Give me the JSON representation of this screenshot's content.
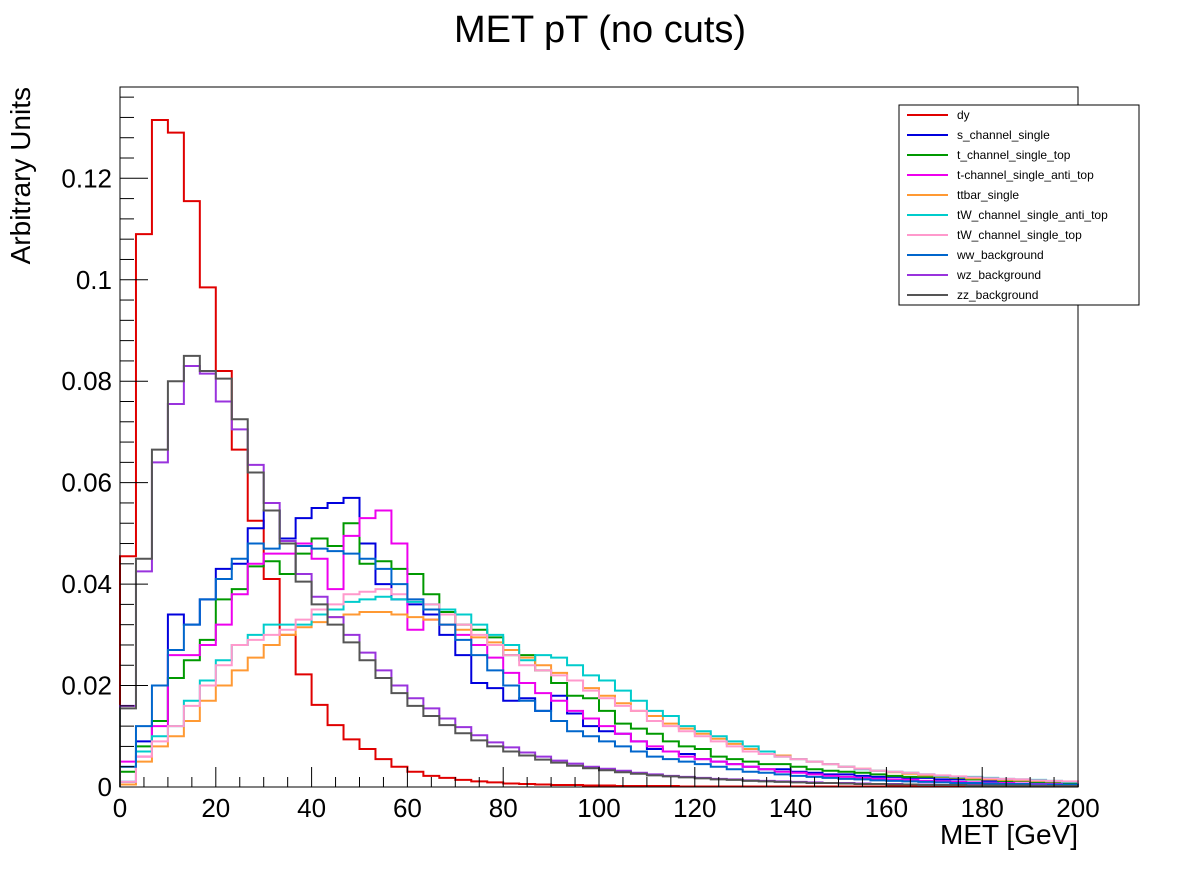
{
  "chart_data": {
    "type": "line",
    "title": "MET pT (no cuts)",
    "xlabel": "MET [GeV]",
    "ylabel": "Arbitrary Units",
    "xlim": [
      0,
      200
    ],
    "ylim": [
      0,
      0.138
    ],
    "bin_width": 3.333,
    "x_ticks": [
      0,
      20,
      40,
      60,
      80,
      100,
      120,
      140,
      160,
      180,
      200
    ],
    "x_tick_labels": [
      "0",
      "20",
      "40",
      "60",
      "80",
      "100",
      "120",
      "140",
      "160",
      "180",
      "200"
    ],
    "y_ticks": [
      0,
      0.02,
      0.04,
      0.06,
      0.08,
      0.1,
      0.12
    ],
    "y_tick_labels": [
      "0",
      "0.02",
      "0.04",
      "0.06",
      "0.08",
      "0.1",
      "0.12"
    ],
    "grid": false,
    "legend_position": "top-right",
    "series": [
      {
        "name": "dy",
        "color": "#e00000",
        "values": [
          0.0455,
          0.109,
          0.1315,
          0.129,
          0.1155,
          0.0985,
          0.082,
          0.0665,
          0.0525,
          0.041,
          0.03,
          0.0222,
          0.0162,
          0.0122,
          0.0094,
          0.0075,
          0.0055,
          0.004,
          0.003,
          0.0022,
          0.0018,
          0.0014,
          0.0011,
          0.0009,
          0.0007,
          0.0006,
          0.0005,
          0.0004,
          0.0004,
          0.0003,
          0.0003,
          0.0002,
          0.0002,
          0.0002,
          0.0002,
          0.0001,
          0.0001,
          0.0001,
          0.0001,
          0.0001,
          0.0001,
          0.0001,
          0.0001,
          0.0001,
          0.0001,
          0.0001,
          0.0001,
          0.0001,
          0.0001,
          0.0001,
          0.0001,
          0.0001,
          0.0001,
          0.0001,
          0.0001,
          0.0001,
          0.0001,
          0.0001,
          0.0001,
          0.0001
        ]
      },
      {
        "name": "s_channel_single",
        "color": "#0000dd",
        "values": [
          0.001,
          0.009,
          0.013,
          0.034,
          0.032,
          0.037,
          0.043,
          0.044,
          0.051,
          0.0545,
          0.049,
          0.053,
          0.055,
          0.056,
          0.057,
          0.048,
          0.04,
          0.037,
          0.036,
          0.034,
          0.03,
          0.026,
          0.0205,
          0.0195,
          0.017,
          0.0175,
          0.015,
          0.018,
          0.0145,
          0.012,
          0.011,
          0.0105,
          0.009,
          0.0075,
          0.007,
          0.0065,
          0.0055,
          0.005,
          0.0045,
          0.004,
          0.0035,
          0.0035,
          0.003,
          0.0028,
          0.0025,
          0.0025,
          0.0022,
          0.002,
          0.002,
          0.0018,
          0.0018,
          0.0015,
          0.0015,
          0.0015,
          0.0012,
          0.0012,
          0.0012,
          0.001,
          0.001,
          0.001
        ]
      },
      {
        "name": "t_channel_single_top",
        "color": "#009900",
        "values": [
          0.003,
          0.008,
          0.013,
          0.0215,
          0.025,
          0.029,
          0.037,
          0.039,
          0.0435,
          0.0445,
          0.042,
          0.046,
          0.049,
          0.0475,
          0.052,
          0.044,
          0.0445,
          0.043,
          0.042,
          0.038,
          0.0345,
          0.032,
          0.031,
          0.0295,
          0.026,
          0.026,
          0.023,
          0.0205,
          0.018,
          0.0175,
          0.015,
          0.0125,
          0.0115,
          0.0105,
          0.009,
          0.008,
          0.0075,
          0.006,
          0.0055,
          0.005,
          0.0045,
          0.0045,
          0.004,
          0.0035,
          0.0032,
          0.003,
          0.0028,
          0.0025,
          0.0022,
          0.002,
          0.002,
          0.002,
          0.0018,
          0.0015,
          0.0015,
          0.0012,
          0.0012,
          0.001,
          0.001,
          0.0008
        ]
      },
      {
        "name": "t-channel_single_anti_top",
        "color": "#ee00ee",
        "values": [
          0.005,
          0.006,
          0.012,
          0.026,
          0.026,
          0.028,
          0.032,
          0.038,
          0.044,
          0.046,
          0.046,
          0.048,
          0.045,
          0.039,
          0.0495,
          0.053,
          0.0545,
          0.048,
          0.031,
          0.033,
          0.032,
          0.03,
          0.028,
          0.0255,
          0.0225,
          0.0205,
          0.0185,
          0.017,
          0.015,
          0.0135,
          0.012,
          0.0105,
          0.009,
          0.008,
          0.007,
          0.006,
          0.0055,
          0.005,
          0.0045,
          0.004,
          0.0035,
          0.003,
          0.0028,
          0.0025,
          0.0022,
          0.002,
          0.0018,
          0.0016,
          0.0015,
          0.0014,
          0.0012,
          0.0011,
          0.001,
          0.0009,
          0.0008,
          0.0008,
          0.0007,
          0.0006,
          0.0006,
          0.0005
        ]
      },
      {
        "name": "ttbar_single",
        "color": "#ff9933",
        "values": [
          0.0005,
          0.005,
          0.008,
          0.01,
          0.013,
          0.017,
          0.02,
          0.023,
          0.0255,
          0.028,
          0.03,
          0.0315,
          0.0325,
          0.0335,
          0.034,
          0.0345,
          0.0345,
          0.034,
          0.0335,
          0.033,
          0.032,
          0.031,
          0.0295,
          0.0285,
          0.027,
          0.0255,
          0.024,
          0.0225,
          0.021,
          0.0195,
          0.018,
          0.0165,
          0.015,
          0.014,
          0.0125,
          0.0115,
          0.0105,
          0.0095,
          0.0085,
          0.0075,
          0.007,
          0.0062,
          0.0055,
          0.005,
          0.0045,
          0.004,
          0.0036,
          0.0032,
          0.0029,
          0.0026,
          0.0023,
          0.0021,
          0.0019,
          0.0017,
          0.0015,
          0.0014,
          0.0013,
          0.0012,
          0.0011,
          0.001
        ]
      },
      {
        "name": "tW_channel_single_anti_top",
        "color": "#00cccc",
        "values": [
          0.001,
          0.007,
          0.01,
          0.012,
          0.017,
          0.021,
          0.025,
          0.028,
          0.03,
          0.032,
          0.032,
          0.032,
          0.034,
          0.035,
          0.0365,
          0.037,
          0.0375,
          0.037,
          0.0365,
          0.036,
          0.035,
          0.034,
          0.032,
          0.03,
          0.028,
          0.025,
          0.026,
          0.0255,
          0.024,
          0.022,
          0.021,
          0.019,
          0.017,
          0.015,
          0.014,
          0.012,
          0.011,
          0.01,
          0.009,
          0.008,
          0.007,
          0.006,
          0.0055,
          0.005,
          0.0045,
          0.004,
          0.0035,
          0.0032,
          0.003,
          0.0028,
          0.0025,
          0.0022,
          0.002,
          0.002,
          0.0018,
          0.0016,
          0.0015,
          0.0014,
          0.0012,
          0.001
        ]
      },
      {
        "name": "tW_channel_single_top",
        "color": "#ff99cc",
        "values": [
          0.001,
          0.006,
          0.009,
          0.012,
          0.016,
          0.02,
          0.024,
          0.028,
          0.029,
          0.03,
          0.031,
          0.033,
          0.035,
          0.036,
          0.038,
          0.0385,
          0.039,
          0.038,
          0.037,
          0.036,
          0.034,
          0.032,
          0.03,
          0.028,
          0.026,
          0.024,
          0.023,
          0.022,
          0.021,
          0.019,
          0.0175,
          0.016,
          0.015,
          0.013,
          0.012,
          0.011,
          0.01,
          0.009,
          0.008,
          0.007,
          0.0065,
          0.006,
          0.0055,
          0.005,
          0.0045,
          0.004,
          0.0036,
          0.0032,
          0.003,
          0.0028,
          0.0025,
          0.0023,
          0.0021,
          0.0019,
          0.0017,
          0.0016,
          0.0015,
          0.0013,
          0.0012,
          0.0011
        ]
      },
      {
        "name": "ww_background",
        "color": "#0066cc",
        "values": [
          0.004,
          0.012,
          0.02,
          0.027,
          0.032,
          0.037,
          0.041,
          0.045,
          0.048,
          0.047,
          0.048,
          0.0475,
          0.047,
          0.0465,
          0.046,
          0.045,
          0.043,
          0.04,
          0.037,
          0.035,
          0.032,
          0.029,
          0.026,
          0.023,
          0.02,
          0.017,
          0.015,
          0.013,
          0.011,
          0.01,
          0.009,
          0.008,
          0.007,
          0.006,
          0.0055,
          0.005,
          0.0045,
          0.004,
          0.0035,
          0.003,
          0.0028,
          0.0025,
          0.0022,
          0.002,
          0.0018,
          0.0016,
          0.0015,
          0.0013,
          0.0012,
          0.0011,
          0.001,
          0.0009,
          0.0008,
          0.0008,
          0.0007,
          0.0006,
          0.0006,
          0.0005,
          0.0005,
          0.0005
        ]
      },
      {
        "name": "wz_background",
        "color": "#9933dd",
        "values": [
          0.016,
          0.0425,
          0.064,
          0.0755,
          0.083,
          0.0815,
          0.076,
          0.0705,
          0.0635,
          0.056,
          0.0485,
          0.042,
          0.0375,
          0.0335,
          0.03,
          0.0265,
          0.023,
          0.02,
          0.0175,
          0.0155,
          0.0135,
          0.0118,
          0.0102,
          0.0088,
          0.0078,
          0.0068,
          0.006,
          0.0052,
          0.0046,
          0.004,
          0.0036,
          0.0032,
          0.0028,
          0.0025,
          0.0022,
          0.002,
          0.0018,
          0.0016,
          0.0015,
          0.0013,
          0.0012,
          0.0011,
          0.001,
          0.0009,
          0.0008,
          0.0008,
          0.0007,
          0.0006,
          0.0006,
          0.0005,
          0.0005,
          0.0004,
          0.0004,
          0.0004,
          0.0003,
          0.0003,
          0.0003,
          0.0003,
          0.0002,
          0.0002
        ]
      },
      {
        "name": "zz_background",
        "color": "#555555",
        "values": [
          0.0155,
          0.045,
          0.0665,
          0.08,
          0.085,
          0.082,
          0.0805,
          0.0725,
          0.062,
          0.0545,
          0.048,
          0.0405,
          0.036,
          0.032,
          0.0285,
          0.025,
          0.0215,
          0.0185,
          0.016,
          0.014,
          0.0122,
          0.0106,
          0.0092,
          0.008,
          0.007,
          0.0062,
          0.0054,
          0.0048,
          0.0042,
          0.0037,
          0.0033,
          0.0029,
          0.0026,
          0.0023,
          0.0021,
          0.0019,
          0.0017,
          0.0015,
          0.0014,
          0.0012,
          0.0011,
          0.001,
          0.0009,
          0.0008,
          0.0008,
          0.0007,
          0.0006,
          0.0006,
          0.0005,
          0.0005,
          0.0004,
          0.0004,
          0.0004,
          0.0003,
          0.0003,
          0.0003,
          0.0003,
          0.0002,
          0.0002,
          0.0002
        ]
      }
    ]
  }
}
